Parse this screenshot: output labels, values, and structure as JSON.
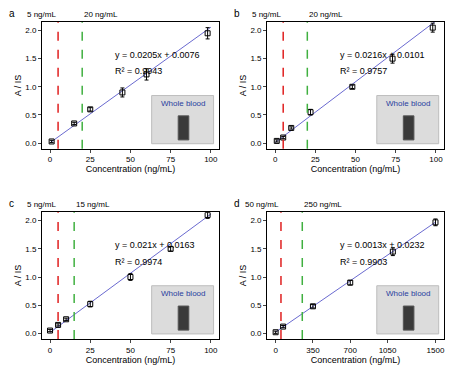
{
  "chart_data": [
    {
      "type": "scatter",
      "title": "a",
      "x_label": "Concentration (ng/mL)",
      "y_label": "A / IS",
      "x": [
        1,
        15,
        25,
        45,
        60,
        98
      ],
      "values": [
        0.03,
        0.35,
        0.6,
        0.9,
        1.22,
        1.95
      ],
      "errors": [
        0.02,
        0.02,
        0.03,
        0.08,
        0.1,
        0.1
      ],
      "color": "#000000",
      "marker": "square-open",
      "fit": {
        "x": [
          0,
          100
        ],
        "values": [
          0.0076,
          2.0576
        ],
        "color": "#6a6ad0",
        "line_style": "solid"
      },
      "thresholds": [
        {
          "value": 5,
          "label": "5 ng/mL",
          "color": "#e02020"
        },
        {
          "value": 20,
          "label": "20 ng/mL",
          "color": "#40b040"
        }
      ],
      "annotations": [
        "y = 0.0205x + 0.0076",
        "R² = 0.9943"
      ],
      "inset_label": "Whole blood",
      "xlim": [
        -5,
        105
      ],
      "ylim": [
        -0.1,
        2.15
      ],
      "xticks": [
        0,
        25,
        50,
        75,
        100
      ],
      "yticks": [
        {
          "value": 0,
          "label": "0.0"
        },
        {
          "value": 0.5,
          "label": "0.5"
        },
        {
          "value": 1,
          "label": "1.0"
        },
        {
          "value": 1.5,
          "label": "1.5"
        },
        {
          "value": 2,
          "label": "2.0"
        }
      ]
    },
    {
      "type": "scatter",
      "title": "b",
      "x_label": "Concentration (ng/mL)",
      "y_label": "A / IS",
      "x": [
        1,
        5,
        10,
        22,
        48,
        73,
        98
      ],
      "values": [
        0.04,
        0.1,
        0.27,
        0.55,
        1.0,
        1.5,
        2.05
      ],
      "errors": [
        0.02,
        0.02,
        0.02,
        0.05,
        0.03,
        0.08,
        0.08
      ],
      "color": "#000000",
      "marker": "square-open",
      "fit": {
        "x": [
          0,
          100
        ],
        "values": [
          0.0101,
          2.1701
        ],
        "color": "#6a6ad0",
        "line_style": "solid"
      },
      "thresholds": [
        {
          "value": 5,
          "label": "5 ng/mL",
          "color": "#e02020"
        },
        {
          "value": 20,
          "label": "20 ng/mL",
          "color": "#40b040"
        }
      ],
      "annotations": [
        "y = 0.0216x + 0.0101",
        "R² = 0.9757"
      ],
      "inset_label": "Whole blood",
      "xlim": [
        -5,
        105
      ],
      "ylim": [
        -0.1,
        2.15
      ],
      "xticks": [
        0,
        25,
        50,
        75,
        100
      ],
      "yticks": [
        {
          "value": 0,
          "label": "0.0"
        },
        {
          "value": 0.5,
          "label": "0.5"
        },
        {
          "value": 1,
          "label": "1.0"
        },
        {
          "value": 1.5,
          "label": "1.5"
        },
        {
          "value": 2,
          "label": "2.0"
        }
      ]
    },
    {
      "type": "scatter",
      "title": "c",
      "x_label": "Concentration (ng/mL)",
      "y_label": "A / IS",
      "x": [
        0,
        5,
        10,
        25,
        50,
        75,
        98
      ],
      "values": [
        0.05,
        0.15,
        0.25,
        0.52,
        1.0,
        1.5,
        2.1
      ],
      "errors": [
        0.02,
        0.02,
        0.02,
        0.05,
        0.06,
        0.04,
        0.06
      ],
      "color": "#000000",
      "marker": "square-open",
      "fit": {
        "x": [
          0,
          100
        ],
        "values": [
          0.0163,
          2.1163
        ],
        "color": "#6a6ad0",
        "line_style": "solid"
      },
      "thresholds": [
        {
          "value": 5,
          "label": "5 ng/mL",
          "color": "#e02020"
        },
        {
          "value": 15,
          "label": "15 ng/mL",
          "color": "#40b040"
        }
      ],
      "annotations": [
        "y = 0.021x + 0.0163",
        "R² = 0.9974"
      ],
      "inset_label": "Whole blood",
      "xlim": [
        -5,
        105
      ],
      "ylim": [
        -0.1,
        2.15
      ],
      "xticks": [
        0,
        25,
        50,
        75,
        100
      ],
      "yticks": [
        {
          "value": 0,
          "label": "0.0"
        },
        {
          "value": 0.5,
          "label": "0.5"
        },
        {
          "value": 1,
          "label": "1.0"
        },
        {
          "value": 1.5,
          "label": "1.5"
        },
        {
          "value": 2,
          "label": "2.0"
        }
      ]
    },
    {
      "type": "scatter",
      "title": "d",
      "x_label": "Concentration (ng/mL)",
      "y_label": "A / IS",
      "x": [
        0,
        70,
        350,
        700,
        1100,
        1500
      ],
      "values": [
        0.02,
        0.12,
        0.48,
        0.9,
        1.45,
        1.97
      ],
      "errors": [
        0.02,
        0.02,
        0.03,
        0.04,
        0.07,
        0.06
      ],
      "color": "#000000",
      "marker": "square-open",
      "fit": {
        "x": [
          0,
          1500
        ],
        "values": [
          0.0232,
          1.9732
        ],
        "color": "#6a6ad0",
        "line_style": "solid"
      },
      "thresholds": [
        {
          "value": 50,
          "label": "50 ng/mL",
          "color": "#e02020"
        },
        {
          "value": 250,
          "label": "250 ng/mL",
          "color": "#40b040"
        }
      ],
      "annotations": [
        "y = 0.0013x + 0.0232",
        "R² = 0.9903"
      ],
      "inset_label": "Whole blood",
      "xlim": [
        -80,
        1580
      ],
      "ylim": [
        -0.1,
        2.15
      ],
      "xticks": [
        0,
        350,
        700,
        1050,
        1500
      ],
      "yticks": [
        {
          "value": 0,
          "label": "0.0"
        },
        {
          "value": 0.5,
          "label": "0.5"
        },
        {
          "value": 1,
          "label": "1.0"
        },
        {
          "value": 1.5,
          "label": "1.5"
        },
        {
          "value": 2,
          "label": "2.0"
        }
      ]
    }
  ]
}
